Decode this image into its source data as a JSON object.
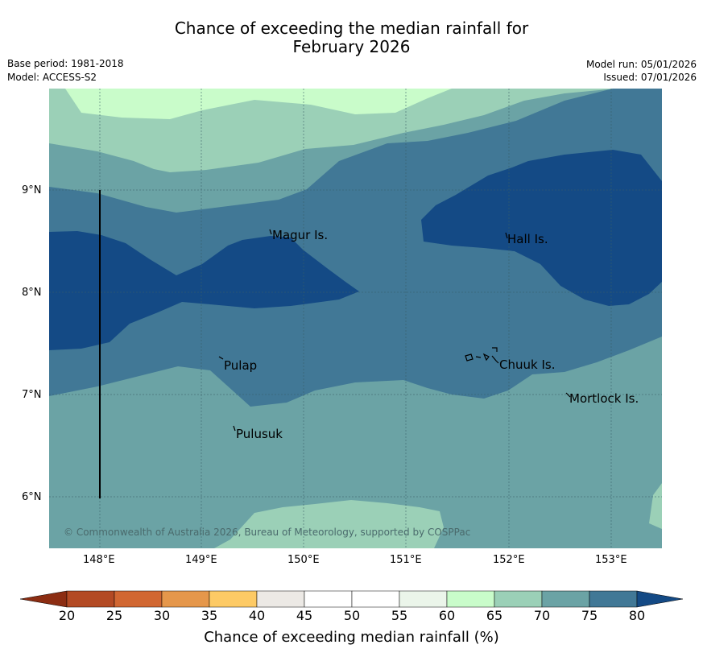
{
  "title": {
    "line1": "Chance of exceeding the median rainfall for",
    "line2": "February 2026"
  },
  "meta": {
    "base_period": "Base period: 1981-2018",
    "model": "Model: ACCESS-S2",
    "model_run": "Model run: 05/01/2026",
    "issued": "Issued: 07/01/2026"
  },
  "map": {
    "places": [
      {
        "name": "Magur Is."
      },
      {
        "name": "Hall Is."
      },
      {
        "name": "Pulap"
      },
      {
        "name": "Chuuk Is."
      },
      {
        "name": "Mortlock Is."
      },
      {
        "name": "Pulusuk"
      }
    ],
    "copyright": "© Commonwealth of Australia 2026, Bureau of Meteorology, supported by COSPPac",
    "lat_labels": [
      "9°N",
      "8°N",
      "7°N",
      "6°N"
    ],
    "lon_labels": [
      "148°E",
      "149°E",
      "150°E",
      "151°E",
      "152°E",
      "153°E"
    ]
  },
  "colorbar": {
    "title": "Chance of exceeding median rainfall (%)",
    "ticks": [
      "20",
      "25",
      "30",
      "35",
      "40",
      "45",
      "50",
      "55",
      "60",
      "65",
      "70",
      "75",
      "80"
    ],
    "colors": {
      "below20": "#8c2d12",
      "c20_25": "#b34a24",
      "c25_30": "#d16732",
      "c30_35": "#e5974b",
      "c35_40": "#fdca65",
      "c40_45": "#ece9e5",
      "c45_50": "#ffffff",
      "c50_55": "#ffffff",
      "c55_60": "#ebf5ea",
      "c60_65": "#c9fcca",
      "c65_70": "#9bd0b7",
      "c70_75": "#6ba3a5",
      "c75_80": "#417896",
      "above80": "#144a85"
    }
  }
}
